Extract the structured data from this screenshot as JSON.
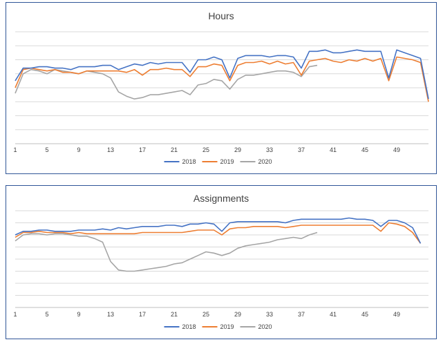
{
  "colors": {
    "s2018": "#4472c4",
    "s2019": "#ed7d31",
    "s2020": "#a5a5a5",
    "grid": "#d9d9d9",
    "frame": "#2f5597"
  },
  "chart_data": [
    {
      "type": "line",
      "title": "Hours",
      "xlabel": "",
      "ylabel": "",
      "ylim": [
        0,
        8
      ],
      "grid": true,
      "legend": "bottom",
      "x_ticks": [
        "1",
        "5",
        "9",
        "13",
        "17",
        "21",
        "25",
        "29",
        "33",
        "37",
        "41",
        "45",
        "49"
      ],
      "series": [
        {
          "name": "2018",
          "color_key": "s2018",
          "values": [
            4.5,
            5.4,
            5.4,
            5.5,
            5.5,
            5.4,
            5.4,
            5.3,
            5.5,
            5.5,
            5.5,
            5.6,
            5.6,
            5.3,
            5.5,
            5.7,
            5.6,
            5.8,
            5.7,
            5.8,
            5.8,
            5.8,
            5.1,
            6.0,
            6.0,
            6.2,
            6.0,
            4.7,
            6.1,
            6.3,
            6.3,
            6.3,
            6.2,
            6.3,
            6.3,
            6.2,
            5.4,
            6.6,
            6.6,
            6.7,
            6.5,
            6.5,
            6.6,
            6.7,
            6.6,
            6.6,
            6.6,
            4.7,
            6.7,
            6.5,
            6.3,
            6.1,
            3.2
          ]
        },
        {
          "name": "2019",
          "color_key": "s2019",
          "values": [
            4.0,
            5.3,
            5.4,
            5.3,
            5.2,
            5.3,
            5.1,
            5.1,
            5.0,
            5.2,
            5.2,
            5.2,
            5.2,
            5.2,
            5.1,
            5.3,
            4.9,
            5.3,
            5.3,
            5.4,
            5.3,
            5.3,
            4.8,
            5.5,
            5.5,
            5.7,
            5.6,
            4.5,
            5.6,
            5.8,
            5.8,
            5.9,
            5.7,
            5.9,
            5.7,
            5.8,
            4.9,
            5.9,
            6.0,
            6.1,
            5.9,
            5.8,
            6.0,
            5.9,
            6.1,
            5.9,
            6.1,
            4.5,
            6.2,
            6.1,
            6.0,
            5.8,
            3.0
          ]
        },
        {
          "name": "2020",
          "color_key": "s2020",
          "values": [
            3.6,
            5.0,
            5.3,
            5.2,
            5.0,
            5.3,
            5.2,
            5.1,
            5.0,
            5.2,
            5.1,
            5.0,
            4.7,
            3.7,
            3.4,
            3.2,
            3.3,
            3.5,
            3.5,
            3.6,
            3.7,
            3.8,
            3.5,
            4.2,
            4.3,
            4.6,
            4.5,
            3.9,
            4.6,
            4.9,
            4.9,
            5.0,
            5.1,
            5.2,
            5.2,
            5.1,
            4.8,
            5.5,
            5.6
          ]
        }
      ]
    },
    {
      "type": "line",
      "title": "Assignments",
      "xlabel": "",
      "ylabel": "",
      "ylim": [
        0,
        8
      ],
      "grid": true,
      "legend": "bottom",
      "x_ticks": [
        "1",
        "5",
        "9",
        "13",
        "17",
        "21",
        "25",
        "29",
        "33",
        "37",
        "41",
        "45",
        "49"
      ],
      "series": [
        {
          "name": "2018",
          "color_key": "s2018",
          "values": [
            6.0,
            6.3,
            6.3,
            6.4,
            6.4,
            6.3,
            6.3,
            6.3,
            6.4,
            6.4,
            6.4,
            6.5,
            6.4,
            6.6,
            6.5,
            6.6,
            6.7,
            6.7,
            6.7,
            6.8,
            6.8,
            6.7,
            6.9,
            6.9,
            7.0,
            6.9,
            6.3,
            7.0,
            7.1,
            7.1,
            7.1,
            7.1,
            7.1,
            7.1,
            7.0,
            7.2,
            7.3,
            7.3,
            7.3,
            7.3,
            7.3,
            7.3,
            7.4,
            7.3,
            7.3,
            7.2,
            6.7,
            7.2,
            7.2,
            7.0,
            6.6,
            5.3
          ]
        },
        {
          "name": "2019",
          "color_key": "s2019",
          "values": [
            5.8,
            6.2,
            6.2,
            6.3,
            6.2,
            6.2,
            6.2,
            6.1,
            6.2,
            6.1,
            6.1,
            6.1,
            6.1,
            6.1,
            6.1,
            6.1,
            6.2,
            6.2,
            6.2,
            6.2,
            6.2,
            6.2,
            6.3,
            6.4,
            6.4,
            6.4,
            6.0,
            6.5,
            6.6,
            6.6,
            6.7,
            6.7,
            6.7,
            6.7,
            6.6,
            6.7,
            6.8,
            6.8,
            6.8,
            6.8,
            6.8,
            6.8,
            6.8,
            6.8,
            6.8,
            6.8,
            6.3,
            7.0,
            6.9,
            6.7,
            6.2,
            5.3
          ]
        },
        {
          "name": "2020",
          "color_key": "s2020",
          "values": [
            5.5,
            6.0,
            6.1,
            6.1,
            6.0,
            6.1,
            6.1,
            6.0,
            5.9,
            5.9,
            5.7,
            5.4,
            3.8,
            3.1,
            3.0,
            3.0,
            3.1,
            3.2,
            3.3,
            3.4,
            3.6,
            3.7,
            4.0,
            4.3,
            4.6,
            4.5,
            4.3,
            4.5,
            4.9,
            5.1,
            5.2,
            5.3,
            5.4,
            5.6,
            5.7,
            5.8,
            5.7,
            6.0,
            6.2
          ]
        }
      ]
    }
  ]
}
